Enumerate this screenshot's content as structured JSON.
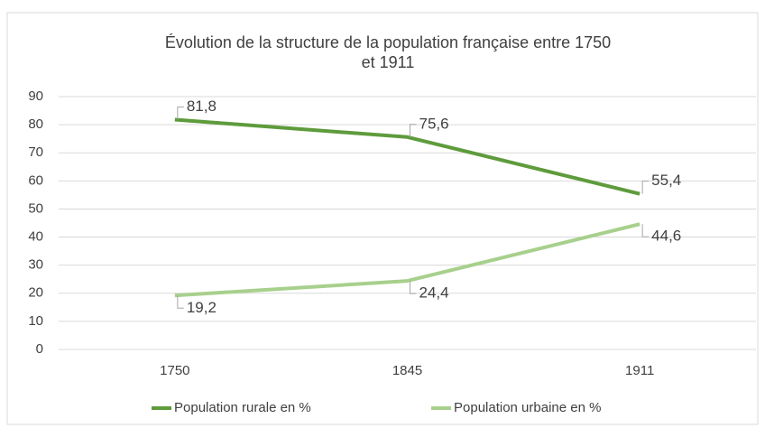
{
  "chart_data": {
    "type": "line",
    "title": [
      "Évolution de la structure de la population française entre 1750",
      "et 1911"
    ],
    "categories": [
      "1750",
      "1845",
      "1911"
    ],
    "series": [
      {
        "name": "Population rurale en %",
        "color": "#5e9b3c",
        "values": [
          81.8,
          75.6,
          55.4
        ],
        "value_labels": [
          "81,8",
          "75,6",
          "55,4"
        ]
      },
      {
        "name": "Population urbaine en %",
        "color": "#a8d08d",
        "values": [
          19.2,
          24.4,
          44.6
        ],
        "value_labels": [
          "19,2",
          "24,4",
          "44,6"
        ]
      }
    ],
    "ylim": [
      0,
      90
    ],
    "yticks": [
      0,
      10,
      20,
      30,
      40,
      50,
      60,
      70,
      80,
      90
    ],
    "grid": true,
    "legend": "bottom"
  }
}
